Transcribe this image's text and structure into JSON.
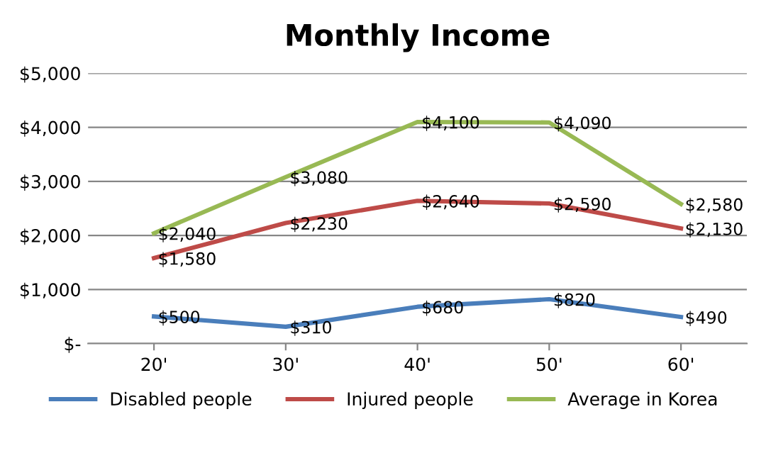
{
  "chart_data": {
    "type": "line",
    "title": "Monthly Income",
    "categories": [
      "20'",
      "30'",
      "40'",
      "50'",
      "60'"
    ],
    "series": [
      {
        "name": "Disabled people",
        "color": "#4a7ebb",
        "values": [
          500,
          310,
          680,
          820,
          490
        ],
        "value_labels": [
          "$500",
          "$310",
          "$680",
          "$820",
          "$490"
        ]
      },
      {
        "name": "Injured people",
        "color": "#be4b48",
        "values": [
          1580,
          2230,
          2640,
          2590,
          2130
        ],
        "value_labels": [
          "$1,580",
          "$2,230",
          "$2,640",
          "$2,590",
          "$2,130"
        ]
      },
      {
        "name": "Average in Korea",
        "color": "#98b954",
        "values": [
          2040,
          3080,
          4100,
          4090,
          2580
        ],
        "value_labels": [
          "$2,040",
          "$3,080",
          "$4,100",
          "$4,090",
          "$2,580"
        ]
      }
    ],
    "ylim": [
      0,
      5000
    ],
    "yticks": [
      {
        "value": 0,
        "label": "$-"
      },
      {
        "value": 1000,
        "label": "$1,000"
      },
      {
        "value": 2000,
        "label": "$2,000"
      },
      {
        "value": 3000,
        "label": "$3,000"
      },
      {
        "value": 4000,
        "label": "$4,000"
      },
      {
        "value": 5000,
        "label": "$5,000"
      }
    ],
    "grid": "y",
    "legend": "bottom",
    "marker": "none",
    "line_style": "solid"
  }
}
